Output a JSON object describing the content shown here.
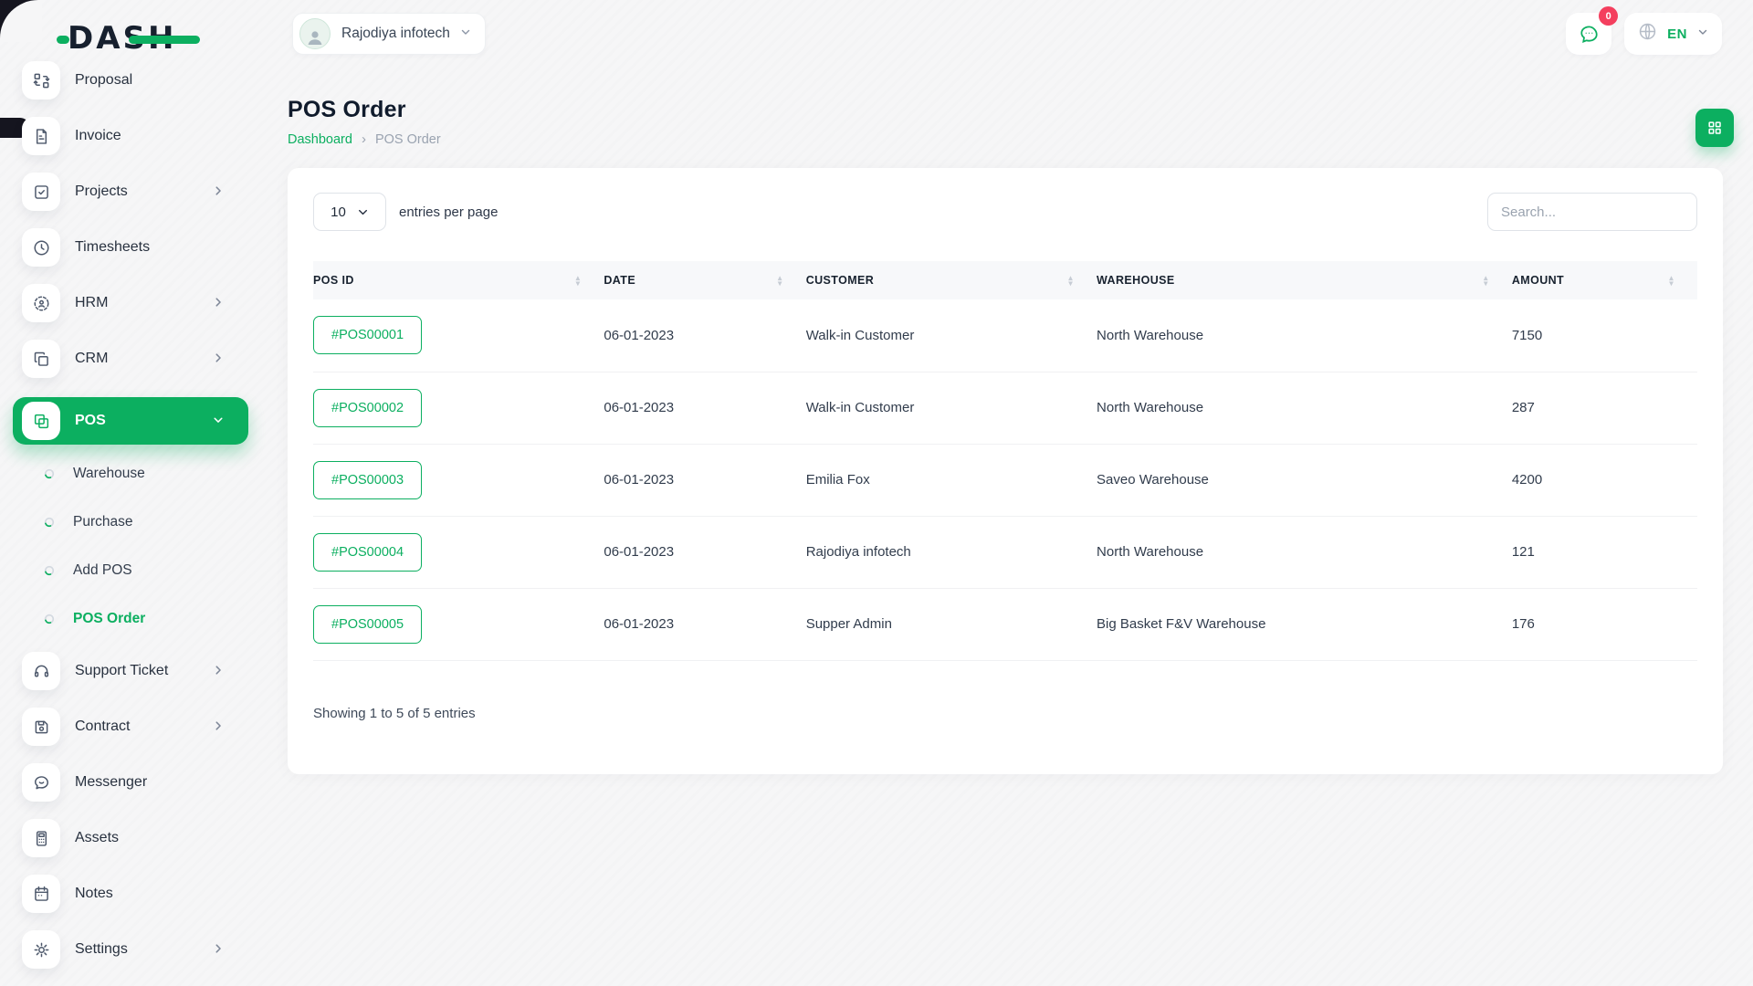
{
  "colors": {
    "accent": "#0CAF60",
    "badge": "#F43F5E",
    "dark_text": "#101b2c"
  },
  "brand": {
    "logo_text": "DASH"
  },
  "topbar": {
    "company_selector": {
      "label": "Rajodiya infotech"
    },
    "notifications": {
      "badge_count": "0"
    },
    "language": {
      "code": "EN"
    }
  },
  "page": {
    "title": "POS Order",
    "breadcrumb": {
      "link": "Dashboard",
      "separator": "›",
      "current": "POS Order"
    }
  },
  "sidebar": {
    "items": [
      {
        "label": "Proposal",
        "icon": "proposal-icon"
      },
      {
        "label": "Invoice",
        "icon": "invoice-icon"
      },
      {
        "label": "Projects",
        "icon": "projects-icon",
        "chevron": "right"
      },
      {
        "label": "Timesheets",
        "icon": "timesheets-icon"
      },
      {
        "label": "HRM",
        "icon": "hrm-icon",
        "chevron": "right"
      },
      {
        "label": "CRM",
        "icon": "crm-icon",
        "chevron": "right"
      },
      {
        "label": "POS",
        "icon": "pos-icon",
        "chevron": "down",
        "active": true
      },
      {
        "label": "Warehouse",
        "sub": true
      },
      {
        "label": "Purchase",
        "sub": true
      },
      {
        "label": "Add POS",
        "sub": true
      },
      {
        "label": "POS Order",
        "sub": true,
        "active": true
      },
      {
        "label": "Support Ticket",
        "icon": "support-ticket-icon",
        "chevron": "right"
      },
      {
        "label": "Contract",
        "icon": "contract-icon",
        "chevron": "right"
      },
      {
        "label": "Messenger",
        "icon": "messenger-icon"
      },
      {
        "label": "Assets",
        "icon": "assets-icon"
      },
      {
        "label": "Notes",
        "icon": "notes-icon"
      },
      {
        "label": "Settings",
        "icon": "settings-icon",
        "chevron": "right"
      }
    ]
  },
  "table_card": {
    "page_size": {
      "value": "10"
    },
    "entries_label": "entries per page",
    "search": {
      "placeholder": "Search..."
    },
    "table": {
      "columns": [
        "POS ID",
        "DATE",
        "CUSTOMER",
        "WAREHOUSE",
        "AMOUNT"
      ],
      "rows": [
        {
          "pos_id": "#POS00001",
          "date": "06-01-2023",
          "customer": "Walk-in Customer",
          "warehouse": "North Warehouse",
          "amount": "7150"
        },
        {
          "pos_id": "#POS00002",
          "date": "06-01-2023",
          "customer": "Walk-in Customer",
          "warehouse": "North Warehouse",
          "amount": "287"
        },
        {
          "pos_id": "#POS00003",
          "date": "06-01-2023",
          "customer": "Emilia Fox",
          "warehouse": "Saveo Warehouse",
          "amount": "4200"
        },
        {
          "pos_id": "#POS00004",
          "date": "06-01-2023",
          "customer": "Rajodiya infotech",
          "warehouse": "North Warehouse",
          "amount": "121"
        },
        {
          "pos_id": "#POS00005",
          "date": "06-01-2023",
          "customer": "Supper Admin",
          "warehouse": "Big Basket F&V Warehouse",
          "amount": "176"
        }
      ]
    },
    "summary": "Showing 1 to 5 of 5 entries"
  }
}
